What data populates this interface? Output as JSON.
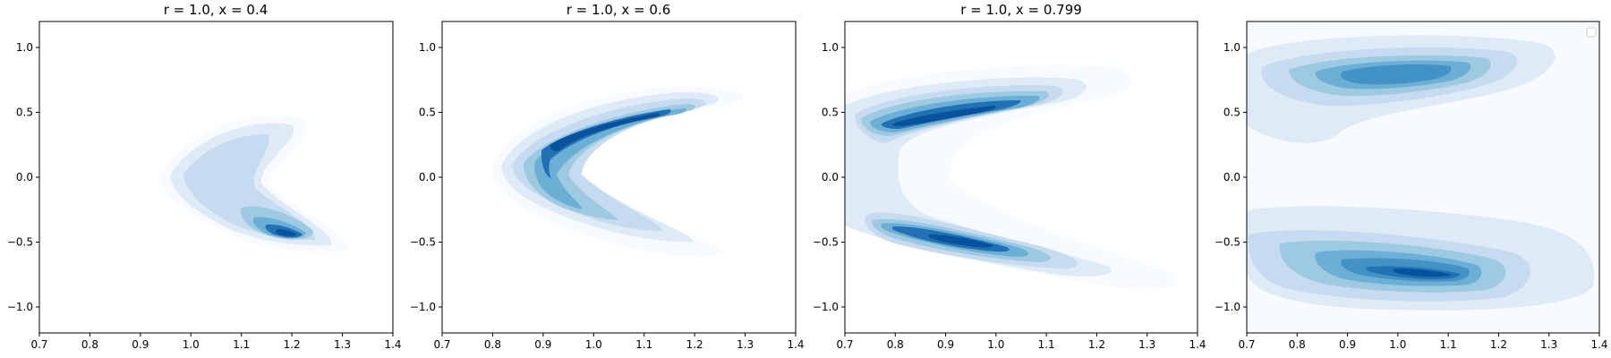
{
  "chart_data": [
    {
      "type": "contour",
      "title": "r = 1.0, x = 0.4",
      "xlim": [
        0.7,
        1.4
      ],
      "ylim": [
        -1.2,
        1.2
      ],
      "xticks": [
        "0.7",
        "0.8",
        "0.9",
        "1.0",
        "1.1",
        "1.2",
        "1.3",
        "1.4"
      ],
      "yticks": [
        "1.0",
        "0.5",
        "0.0",
        "−0.5",
        "−1.0"
      ],
      "peaks": [
        {
          "x": 1.2,
          "y": -0.42,
          "density": 1.0
        },
        {
          "x": 1.1,
          "y": 0.18,
          "density": 0.4
        }
      ]
    },
    {
      "type": "contour",
      "title": "r = 1.0, x = 0.6",
      "xlim": [
        0.7,
        1.4
      ],
      "ylim": [
        -1.2,
        1.2
      ],
      "xticks": [
        "0.7",
        "0.8",
        "0.9",
        "1.0",
        "1.1",
        "1.2",
        "1.3",
        "1.4"
      ],
      "yticks": [
        "1.0",
        "0.5",
        "0.0",
        "−0.5",
        "−1.0"
      ],
      "peaks": [
        {
          "x": 1.1,
          "y": 0.52,
          "density": 1.0
        },
        {
          "x": 0.9,
          "y": 0.12,
          "density": 0.85
        },
        {
          "x": 1.0,
          "y": -0.22,
          "density": 0.55
        }
      ]
    },
    {
      "type": "contour",
      "title": "r = 1.0, x = 0.799",
      "xlim": [
        0.7,
        1.4
      ],
      "ylim": [
        -1.2,
        1.2
      ],
      "xticks": [
        "0.7",
        "0.8",
        "0.9",
        "1.0",
        "1.1",
        "1.2",
        "1.3",
        "1.4"
      ],
      "yticks": [
        "1.0",
        "0.5",
        "0.0",
        "−0.5",
        "−1.0"
      ],
      "peaks": [
        {
          "x": 0.9,
          "y": 0.45,
          "density": 1.0
        },
        {
          "x": 0.95,
          "y": -0.52,
          "density": 0.9
        }
      ]
    },
    {
      "type": "contour",
      "title": "",
      "xlim": [
        0.7,
        1.4
      ],
      "ylim": [
        -1.2,
        1.2
      ],
      "xticks": [
        "0.7",
        "0.8",
        "0.9",
        "1.0",
        "1.1",
        "1.2",
        "1.3",
        "1.4"
      ],
      "yticks": [
        "1.0",
        "0.5",
        "0.0",
        "−0.5",
        "−1.0"
      ],
      "legend": "top-right",
      "peaks": [
        {
          "x": 1.05,
          "y": 0.82,
          "density": 0.6
        },
        {
          "x": 1.05,
          "y": -0.82,
          "density": 1.0
        }
      ]
    }
  ],
  "colors": {
    "levels": [
      "#f7fbff",
      "#deebf7",
      "#c6dbef",
      "#9ecae1",
      "#6baed6",
      "#4292c6",
      "#2171b5",
      "#08519c"
    ],
    "axis": "#000000",
    "background": "#ffffff"
  }
}
